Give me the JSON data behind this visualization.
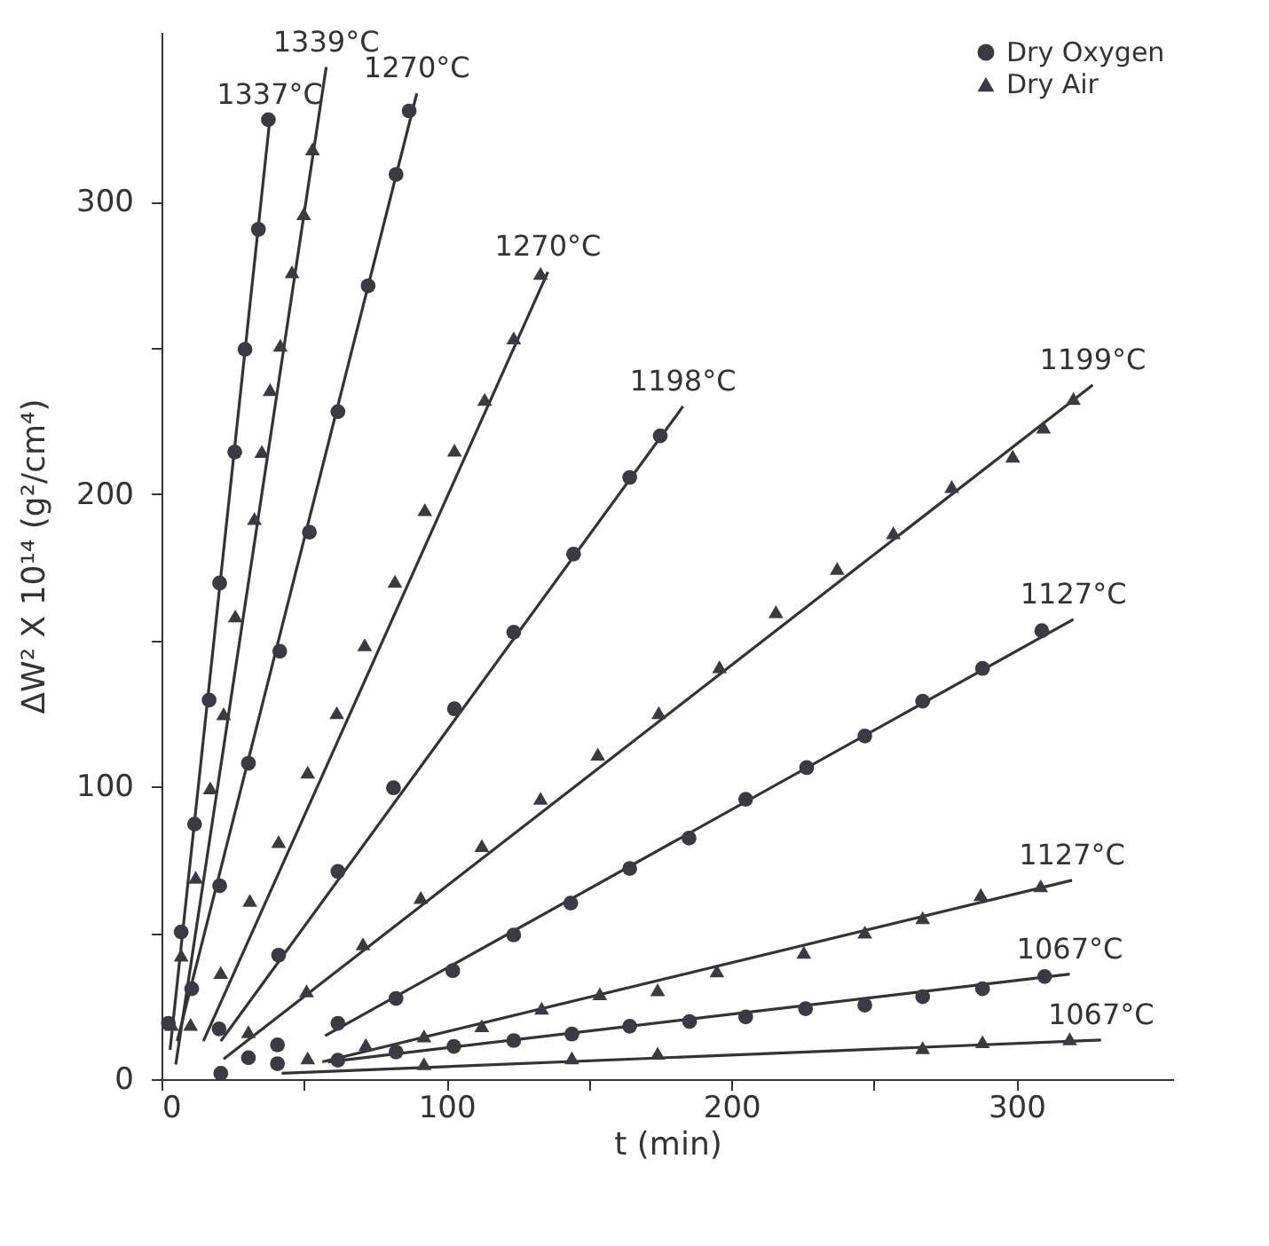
{
  "chart_data": {
    "type": "scatter",
    "xlabel": "t (min)",
    "ylabel": "ΔW² X 10¹⁴ (g²/cm⁴)",
    "xlim": [
      0,
      355
    ],
    "ylim": [
      0,
      358
    ],
    "xticks": [
      0,
      {
        "value": 50,
        "label": null
      },
      100,
      {
        "value": 150,
        "label": null
      },
      200,
      {
        "value": 250,
        "label": null
      },
      300
    ],
    "yticks": [
      0,
      {
        "value": 50,
        "label": null
      },
      100,
      {
        "value": 150,
        "label": null
      },
      200,
      {
        "value": 250,
        "label": null
      },
      300
    ],
    "grid": false,
    "legend": "top right",
    "series": [
      {
        "type": "scatter",
        "name": "Dry Oxygen",
        "marker": "circle",
        "color": "#3a3a44",
        "x": [
          37.5,
          34,
          29.3,
          25.7,
          20.4,
          16.7,
          11.6,
          6.9,
          2.4,
          86.9,
          82.3,
          72.5,
          61.9,
          51.9,
          41.5,
          30.5,
          20.4,
          10.6,
          175,
          164.3,
          144.6,
          123.6,
          102.8,
          81.4,
          61.9,
          41.1,
          20.2,
          308.9,
          288.1,
          267.1,
          246.8,
          226.4,
          205,
          185.1,
          164.3,
          143.6,
          123.6,
          102.2,
          82.3,
          61.9,
          309.9,
          288.1,
          267.1,
          246.8,
          226,
          205,
          185.3,
          164.3,
          144,
          123.6,
          102.6,
          82.3,
          61.9,
          40.7,
          20.8,
          30.5,
          40.7
        ],
        "values": [
          328,
          290.5,
          249.5,
          214.4,
          169.6,
          129.6,
          87.2,
          50.3,
          19.1,
          331,
          309.3,
          271.2,
          228.2,
          187,
          146.3,
          108,
          66.1,
          30.9,
          219.9,
          205.7,
          179.5,
          152.8,
          126.6,
          99.6,
          71,
          42.4,
          17.2,
          153.3,
          140.4,
          129.2,
          117.3,
          106.5,
          95.7,
          82.4,
          72,
          60.2,
          49.3,
          37.1,
          27.6,
          19.1,
          35.1,
          30.9,
          28.2,
          25.3,
          24.1,
          21.3,
          19.7,
          18.1,
          15.4,
          13.2,
          11.2,
          9.3,
          6.5,
          5.3,
          2,
          7.3,
          11.7
        ]
      },
      {
        "type": "scatter",
        "name": "Dry Air",
        "marker": "triangle",
        "color": "#3a3a44",
        "x": [
          53,
          49.9,
          45.8,
          41.7,
          38.1,
          35.2,
          32.6,
          25.9,
          21.8,
          17.1,
          12,
          6.9,
          3.5,
          133,
          123.6,
          113.4,
          102.8,
          92.4,
          81.9,
          71.3,
          61.5,
          51.3,
          41.1,
          31,
          20.8,
          10.2,
          320,
          309.5,
          298.7,
          277.3,
          256.8,
          237.1,
          215.6,
          195.8,
          174.5,
          153.1,
          133,
          112.4,
          91,
          70.7,
          50.9,
          30.5,
          308.5,
          287.5,
          267.1,
          246.8,
          225.4,
          194.9,
          174.1,
          153.8,
          133.4,
          112.4,
          92.1,
          71.7,
          51.3,
          318.7,
          288.1,
          267.1,
          174.1,
          144,
          92.1
        ],
        "values": [
          318,
          295.9,
          276,
          250.9,
          235.7,
          214.6,
          191.7,
          158.4,
          124.9,
          99.6,
          69,
          42.4,
          18.7,
          275.5,
          253.4,
          232.4,
          215,
          194.7,
          170.2,
          148.5,
          125.3,
          105,
          81.2,
          61.1,
          36.5,
          18.7,
          232.7,
          222.9,
          213,
          202.6,
          186.8,
          174.6,
          159.8,
          141,
          125.3,
          111.1,
          96,
          79.9,
          62.1,
          46.3,
          30.2,
          16.2,
          66.1,
          63.1,
          55.2,
          50.3,
          43.4,
          37,
          30.6,
          29.2,
          24.3,
          18.3,
          14.8,
          11.8,
          7.3,
          13.8,
          12.8,
          10.8,
          8.9,
          7.3,
          5.3
        ]
      },
      {
        "type": "line",
        "color": "#333333",
        "line_style": "solid",
        "x": [
          3,
          38
        ],
        "values": [
          10,
          328
        ]
      },
      {
        "type": "line",
        "color": "#333333",
        "line_style": "solid",
        "x": [
          5,
          57.8
        ],
        "values": [
          5,
          346
        ]
      },
      {
        "type": "line",
        "color": "#333333",
        "line_style": "solid",
        "x": [
          5.5,
          89.6
        ],
        "values": [
          13,
          337
        ]
      },
      {
        "type": "line",
        "color": "#333333",
        "line_style": "solid",
        "x": [
          14.7,
          135.6
        ],
        "values": [
          13,
          276
        ]
      },
      {
        "type": "line",
        "color": "#333333",
        "line_style": "solid",
        "x": [
          20.8,
          183
        ],
        "values": [
          13,
          230
        ]
      },
      {
        "type": "line",
        "color": "#333333",
        "line_style": "solid",
        "x": [
          21.8,
          326.8
        ],
        "values": [
          6.9,
          237.3
        ]
      },
      {
        "type": "line",
        "color": "#333333",
        "line_style": "solid",
        "x": [
          57.4,
          320
        ],
        "values": [
          14.8,
          157.2
        ]
      },
      {
        "type": "line",
        "color": "#333333",
        "line_style": "solid",
        "x": [
          56.4,
          319.5
        ],
        "values": [
          5.9,
          68
        ]
      },
      {
        "type": "line",
        "color": "#333333",
        "line_style": "solid",
        "x": [
          58.4,
          318.7
        ],
        "values": [
          5.9,
          35.9
        ]
      },
      {
        "type": "line",
        "color": "#333333",
        "line_style": "solid",
        "x": [
          42.2,
          329.7
        ],
        "values": [
          2,
          13.4
        ]
      }
    ],
    "annotations": [
      {
        "text": "1337°C",
        "x": 38,
        "y": 328
      },
      {
        "text": "1339°C",
        "x": 57.8,
        "y": 346
      },
      {
        "text": "1270°C",
        "x": 89.6,
        "y": 337
      },
      {
        "text": "1270°C",
        "x": 135.6,
        "y": 276
      },
      {
        "text": "1198°C",
        "x": 183,
        "y": 230
      },
      {
        "text": "1199°C",
        "x": 326.8,
        "y": 237.3
      },
      {
        "text": "1127°C",
        "x": 320,
        "y": 157.2
      },
      {
        "text": "1127°C",
        "x": 319.5,
        "y": 68
      },
      {
        "text": "1067°C",
        "x": 318.7,
        "y": 35.9
      },
      {
        "text": "1067°C",
        "x": 329.7,
        "y": 13.4
      }
    ]
  }
}
